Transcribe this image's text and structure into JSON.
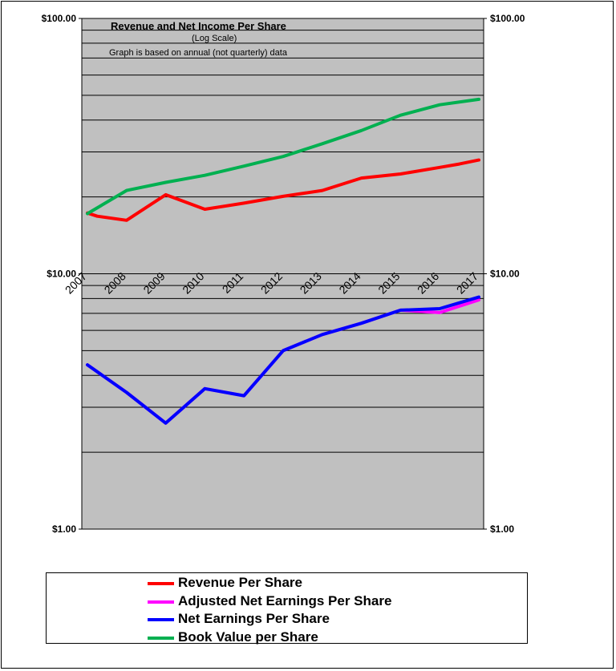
{
  "chart_data": {
    "type": "line",
    "title": "Revenue  and Net Income  Per Share",
    "subtitle": "(Log Scale)",
    "note": "Graph is based on annual (not quarterly) data",
    "y_scale": "log",
    "ylim": [
      1,
      100
    ],
    "y_ticks": [
      {
        "value": 100,
        "label": "$100.00"
      },
      {
        "value": 10,
        "label": "$10.00"
      },
      {
        "value": 1,
        "label": "$1.00"
      }
    ],
    "x_ticks": [
      "2007",
      "2008",
      "2009",
      "2010",
      "2011",
      "2012",
      "2013",
      "2014",
      "2015",
      "2016",
      "2017"
    ],
    "grid": true,
    "legend_position": "bottom",
    "series": [
      {
        "name": "Revenue Per Share",
        "color": "#ff0000",
        "x": [
          2007,
          2007.25,
          2008,
          2009,
          2010,
          2011,
          2012,
          2013,
          2014,
          2015,
          2016,
          2016.5,
          2017
        ],
        "y": [
          17.3,
          16.8,
          16.2,
          20.4,
          17.9,
          18.9,
          20.1,
          21.2,
          23.7,
          24.6,
          26.1,
          26.9,
          27.9
        ]
      },
      {
        "name": "Adjusted Net Earnings Per Share",
        "color": "#ff00ff",
        "x": [
          2007,
          2008,
          2009,
          2010,
          2011,
          2012,
          2013,
          2014,
          2015,
          2016,
          2017
        ],
        "y": [
          4.4,
          3.43,
          2.6,
          3.55,
          3.33,
          5.0,
          5.78,
          6.4,
          7.2,
          7.05,
          7.9
        ]
      },
      {
        "name": "Net Earnings Per Share",
        "color": "#0000ff",
        "x": [
          2007,
          2008,
          2009,
          2010,
          2011,
          2012,
          2013,
          2014,
          2015,
          2016,
          2017
        ],
        "y": [
          4.4,
          3.43,
          2.6,
          3.55,
          3.33,
          5.0,
          5.78,
          6.4,
          7.2,
          7.3,
          8.1
        ]
      },
      {
        "name": "Book Value per Share",
        "color": "#00b050",
        "x": [
          2007,
          2008,
          2009,
          2010,
          2011,
          2012,
          2013,
          2014,
          2015,
          2016,
          2017
        ],
        "y": [
          17.2,
          21.2,
          22.8,
          24.3,
          26.4,
          28.8,
          32.3,
          36.4,
          41.8,
          45.9,
          48.2
        ]
      }
    ]
  }
}
